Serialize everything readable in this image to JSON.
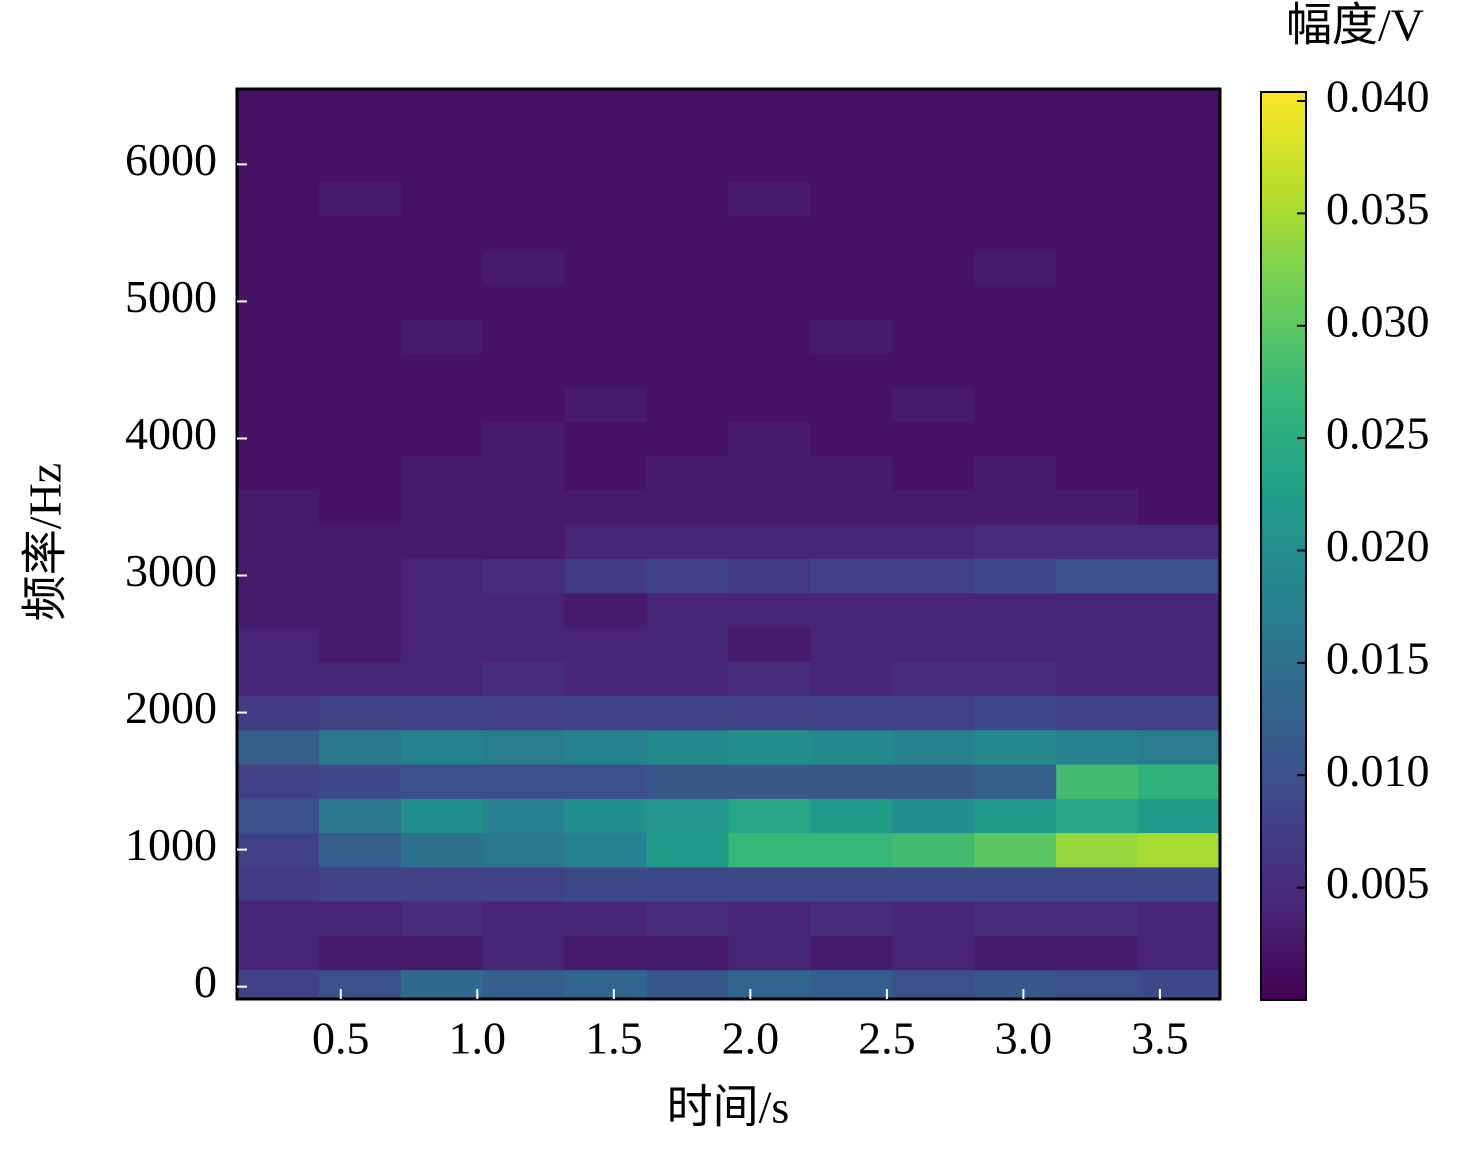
{
  "chart_data": {
    "type": "heatmap",
    "x_label": "时间/s",
    "y_label": "频率/Hz",
    "colorbar_label": "幅度/V",
    "x": [
      0.27,
      0.57,
      0.87,
      1.17,
      1.47,
      1.77,
      2.07,
      2.37,
      2.67,
      2.97,
      3.27,
      3.57
    ],
    "y": [
      0,
      250,
      500,
      750,
      1000,
      1250,
      1500,
      1750,
      2000,
      2250,
      2500,
      2750,
      3000,
      3250,
      3500,
      3750,
      4000,
      4250,
      4500,
      4750,
      5000,
      5250,
      5500,
      5750,
      6000,
      6250,
      6500
    ],
    "values": [
      [
        0.008,
        0.01,
        0.014,
        0.012,
        0.013,
        0.011,
        0.013,
        0.012,
        0.01,
        0.011,
        0.01,
        0.009
      ],
      [
        0.004,
        0.003,
        0.003,
        0.004,
        0.003,
        0.003,
        0.004,
        0.003,
        0.004,
        0.003,
        0.003,
        0.004
      ],
      [
        0.004,
        0.004,
        0.005,
        0.004,
        0.004,
        0.005,
        0.004,
        0.005,
        0.004,
        0.005,
        0.005,
        0.004
      ],
      [
        0.007,
        0.008,
        0.008,
        0.008,
        0.009,
        0.009,
        0.009,
        0.009,
        0.009,
        0.009,
        0.009,
        0.009
      ],
      [
        0.008,
        0.012,
        0.015,
        0.016,
        0.018,
        0.022,
        0.027,
        0.027,
        0.028,
        0.03,
        0.034,
        0.035
      ],
      [
        0.01,
        0.016,
        0.02,
        0.018,
        0.02,
        0.021,
        0.024,
        0.022,
        0.02,
        0.022,
        0.024,
        0.022
      ],
      [
        0.008,
        0.009,
        0.01,
        0.01,
        0.01,
        0.011,
        0.011,
        0.011,
        0.011,
        0.012,
        0.028,
        0.026
      ],
      [
        0.012,
        0.016,
        0.018,
        0.017,
        0.018,
        0.019,
        0.02,
        0.019,
        0.018,
        0.019,
        0.018,
        0.017
      ],
      [
        0.007,
        0.008,
        0.008,
        0.008,
        0.008,
        0.008,
        0.008,
        0.008,
        0.008,
        0.009,
        0.008,
        0.008
      ],
      [
        0.004,
        0.004,
        0.004,
        0.005,
        0.004,
        0.004,
        0.005,
        0.004,
        0.005,
        0.005,
        0.004,
        0.004
      ],
      [
        0.004,
        0.003,
        0.004,
        0.004,
        0.004,
        0.004,
        0.003,
        0.004,
        0.004,
        0.004,
        0.004,
        0.004
      ],
      [
        0.003,
        0.003,
        0.004,
        0.004,
        0.003,
        0.004,
        0.004,
        0.004,
        0.004,
        0.004,
        0.004,
        0.004
      ],
      [
        0.003,
        0.003,
        0.004,
        0.005,
        0.007,
        0.008,
        0.007,
        0.008,
        0.008,
        0.009,
        0.01,
        0.01
      ],
      [
        0.003,
        0.003,
        0.003,
        0.003,
        0.004,
        0.004,
        0.004,
        0.004,
        0.004,
        0.005,
        0.005,
        0.005
      ],
      [
        0.003,
        0.002,
        0.003,
        0.003,
        0.003,
        0.003,
        0.003,
        0.003,
        0.003,
        0.003,
        0.003,
        0.002
      ],
      [
        0.002,
        0.002,
        0.003,
        0.003,
        0.002,
        0.003,
        0.003,
        0.003,
        0.002,
        0.003,
        0.002,
        0.002
      ],
      [
        0.002,
        0.002,
        0.002,
        0.003,
        0.002,
        0.002,
        0.003,
        0.002,
        0.002,
        0.002,
        0.002,
        0.002
      ],
      [
        0.002,
        0.002,
        0.002,
        0.002,
        0.003,
        0.002,
        0.002,
        0.002,
        0.003,
        0.002,
        0.002,
        0.002
      ],
      [
        0.002,
        0.002,
        0.002,
        0.002,
        0.002,
        0.002,
        0.002,
        0.002,
        0.002,
        0.002,
        0.002,
        0.002
      ],
      [
        0.002,
        0.002,
        0.003,
        0.002,
        0.002,
        0.002,
        0.002,
        0.003,
        0.002,
        0.002,
        0.002,
        0.002
      ],
      [
        0.002,
        0.002,
        0.002,
        0.002,
        0.002,
        0.002,
        0.002,
        0.002,
        0.002,
        0.002,
        0.002,
        0.002
      ],
      [
        0.002,
        0.002,
        0.002,
        0.003,
        0.002,
        0.002,
        0.002,
        0.002,
        0.002,
        0.003,
        0.002,
        0.002
      ],
      [
        0.002,
        0.002,
        0.002,
        0.002,
        0.002,
        0.002,
        0.002,
        0.002,
        0.002,
        0.002,
        0.002,
        0.002
      ],
      [
        0.002,
        0.003,
        0.002,
        0.002,
        0.002,
        0.002,
        0.003,
        0.002,
        0.002,
        0.002,
        0.002,
        0.002
      ],
      [
        0.002,
        0.002,
        0.002,
        0.002,
        0.002,
        0.002,
        0.002,
        0.002,
        0.002,
        0.002,
        0.002,
        0.002
      ],
      [
        0.002,
        0.002,
        0.002,
        0.002,
        0.002,
        0.002,
        0.002,
        0.002,
        0.002,
        0.002,
        0.002,
        0.002
      ],
      [
        0.002,
        0.002,
        0.002,
        0.002,
        0.002,
        0.002,
        0.002,
        0.002,
        0.002,
        0.002,
        0.002,
        0.002
      ]
    ],
    "xlim": [
      0.12,
      3.72
    ],
    "ylim": [
      -90,
      6550
    ],
    "xticks": [
      0.5,
      {
        "value": 1.0,
        "label": "1.0"
      },
      1.5,
      {
        "value": 2.0,
        "label": "2.0"
      },
      2.5,
      {
        "value": 3.0,
        "label": "3.0"
      },
      3.5
    ],
    "yticks": [
      0,
      1000,
      2000,
      3000,
      4000,
      5000,
      6000
    ],
    "clim": [
      0,
      0.0404
    ],
    "cticks": [
      0.005,
      {
        "value": 0.01,
        "label": "0.010"
      },
      0.015,
      {
        "value": 0.02,
        "label": "0.020"
      },
      0.025,
      {
        "value": 0.03,
        "label": "0.030"
      },
      0.035,
      {
        "value": 0.04,
        "label": "0.040"
      }
    ],
    "colormap": [
      "#440154",
      "#482878",
      "#3e4989",
      "#31688e",
      "#26828e",
      "#1f9e89",
      "#35b779",
      "#6ece58",
      "#b5de2b",
      "#fde725"
    ]
  }
}
